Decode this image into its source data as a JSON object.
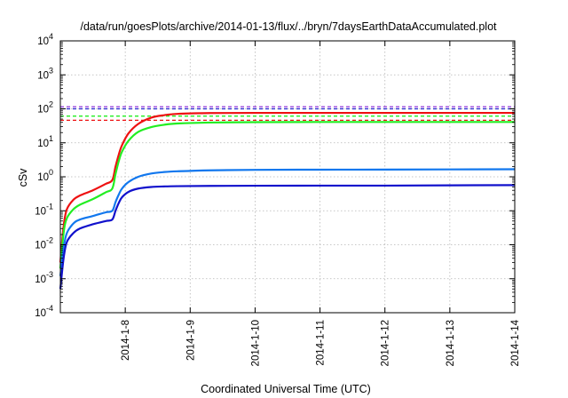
{
  "chart_data": {
    "type": "line",
    "title": "/data/run/goesPlots/archive/2014-01-13/flux/../bryn/7daysEarthDataAccumulated.plot",
    "xlabel": "Coordinated Universal Time (UTC)",
    "ylabel": "cSv",
    "yscale": "log",
    "ylim": [
      0.0001,
      10000
    ],
    "xlim": [
      "2014-01-07T00:00",
      "2014-01-14T00:00"
    ],
    "grid": true,
    "x_ticks": [
      "2014-1-8",
      "2014-1-9",
      "2014-1-10",
      "2014-1-11",
      "2014-1-12",
      "2014-1-13",
      "2014-1-14"
    ],
    "y_ticks": [
      {
        "value": 0.0001,
        "base": "10",
        "exp": "-4"
      },
      {
        "value": 0.001,
        "base": "10",
        "exp": "-3"
      },
      {
        "value": 0.01,
        "base": "10",
        "exp": "-2"
      },
      {
        "value": 0.1,
        "base": "10",
        "exp": "-1"
      },
      {
        "value": 1,
        "base": "10",
        "exp": "0"
      },
      {
        "value": 10,
        "base": "10",
        "exp": "1"
      },
      {
        "value": 100,
        "base": "10",
        "exp": "2"
      },
      {
        "value": 1000,
        "base": "10",
        "exp": "3"
      },
      {
        "value": 10000,
        "base": "10",
        "exp": "4"
      }
    ],
    "series": [
      {
        "color": "#ee1111",
        "x": [
          "2014-01-07T00:00",
          "2014-01-07T01:12",
          "2014-01-07T02:24",
          "2014-01-07T04:48",
          "2014-01-07T07:12",
          "2014-01-07T12:00",
          "2014-01-07T16:48",
          "2014-01-07T19:12",
          "2014-01-07T20:24",
          "2014-01-07T21:36",
          "2014-01-07T22:48",
          "2014-01-08T01:12",
          "2014-01-08T04:48",
          "2014-01-08T09:36",
          "2014-01-08T14:24",
          "2014-01-08T19:12",
          "2014-01-09T07:12",
          "2014-01-10T00:00",
          "2014-01-11T00:00",
          "2014-01-12T00:00",
          "2014-01-13T00:00",
          "2014-01-14T00:00"
        ],
        "y": [
          0.003,
          0.035,
          0.11,
          0.21,
          0.28,
          0.4,
          0.62,
          0.8,
          2.0,
          4.5,
          8.5,
          19,
          36,
          55,
          65,
          71,
          75,
          76,
          76,
          76,
          76,
          76
        ]
      },
      {
        "color": "#22ee22",
        "x": [
          "2014-01-07T00:00",
          "2014-01-07T01:12",
          "2014-01-07T02:24",
          "2014-01-07T04:48",
          "2014-01-07T07:12",
          "2014-01-07T12:00",
          "2014-01-07T16:48",
          "2014-01-07T19:12",
          "2014-01-07T20:24",
          "2014-01-07T21:36",
          "2014-01-07T22:48",
          "2014-01-08T01:12",
          "2014-01-08T04:48",
          "2014-01-08T09:36",
          "2014-01-08T14:24",
          "2014-01-08T19:12",
          "2014-01-09T07:12",
          "2014-01-10T00:00",
          "2014-01-11T00:00",
          "2014-01-12T00:00",
          "2014-01-13T00:00",
          "2014-01-14T00:00"
        ],
        "y": [
          0.002,
          0.022,
          0.06,
          0.11,
          0.15,
          0.22,
          0.35,
          0.45,
          1.2,
          2.9,
          5.5,
          11.5,
          21,
          29,
          34,
          37,
          39.5,
          40.5,
          41,
          41,
          41,
          41
        ]
      },
      {
        "color": "#1177ee",
        "x": [
          "2014-01-07T00:00",
          "2014-01-07T01:12",
          "2014-01-07T02:24",
          "2014-01-07T04:48",
          "2014-01-07T07:12",
          "2014-01-07T12:00",
          "2014-01-07T16:48",
          "2014-01-07T19:12",
          "2014-01-07T20:24",
          "2014-01-07T21:36",
          "2014-01-07T22:48",
          "2014-01-08T01:12",
          "2014-01-08T04:48",
          "2014-01-08T09:36",
          "2014-01-08T14:24",
          "2014-01-08T19:12",
          "2014-01-09T07:12",
          "2014-01-10T00:00",
          "2014-01-11T00:00",
          "2014-01-12T00:00",
          "2014-01-13T00:00",
          "2014-01-14T00:00"
        ],
        "y": [
          0.0012,
          0.008,
          0.022,
          0.042,
          0.055,
          0.07,
          0.09,
          0.1,
          0.18,
          0.3,
          0.45,
          0.7,
          1.0,
          1.25,
          1.38,
          1.45,
          1.55,
          1.6,
          1.62,
          1.63,
          1.65,
          1.67
        ]
      },
      {
        "color": "#1111cc",
        "x": [
          "2014-01-07T00:00",
          "2014-01-07T01:12",
          "2014-01-07T02:24",
          "2014-01-07T04:48",
          "2014-01-07T07:12",
          "2014-01-07T12:00",
          "2014-01-07T16:48",
          "2014-01-07T19:12",
          "2014-01-07T20:24",
          "2014-01-07T21:36",
          "2014-01-07T22:48",
          "2014-01-08T01:12",
          "2014-01-08T04:48",
          "2014-01-08T09:36",
          "2014-01-08T14:24",
          "2014-01-08T19:12",
          "2014-01-09T07:12",
          "2014-01-10T00:00",
          "2014-01-11T00:00",
          "2014-01-12T00:00",
          "2014-01-13T00:00",
          "2014-01-14T00:00"
        ],
        "y": [
          0.0005,
          0.004,
          0.012,
          0.022,
          0.03,
          0.04,
          0.05,
          0.055,
          0.1,
          0.17,
          0.25,
          0.36,
          0.45,
          0.5,
          0.52,
          0.53,
          0.54,
          0.545,
          0.55,
          0.55,
          0.56,
          0.57
        ]
      }
    ],
    "reference_lines": [
      {
        "y": 115,
        "color": "#9944dd"
      },
      {
        "y": 100,
        "color": "#2222cc"
      },
      {
        "y": 61,
        "color": "#22ee22"
      },
      {
        "y": 46,
        "color": "#ee1111"
      }
    ]
  }
}
